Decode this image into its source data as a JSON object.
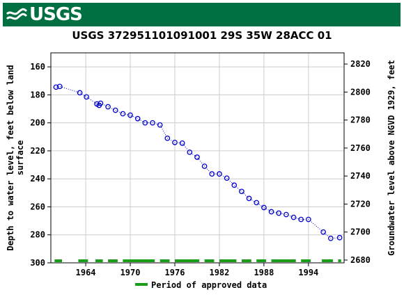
{
  "header": {
    "logo_text": "USGS",
    "brand_color": "#006f41",
    "logo_icon": "usgs-wave-icon"
  },
  "chart_data": {
    "type": "scatter",
    "title": "USGS 372951101091001 29S 35W 28ACC 01",
    "ylabel_left": "Depth to water level, feet below land surface",
    "ylabel_right": "Groundwater level above NGVD 1929, feet",
    "ylim_left": [
      300,
      150
    ],
    "ylim_right": [
      2678,
      2828
    ],
    "xlim": [
      1959.3,
      1998.8
    ],
    "x_ticks": [
      "1964",
      "1970",
      "1976",
      "1982",
      "1988",
      "1994"
    ],
    "y_ticks_left": [
      "160",
      "180",
      "200",
      "220",
      "240",
      "260",
      "280",
      "300"
    ],
    "y_ticks_right": [
      "2820",
      "2800",
      "2780",
      "2760",
      "2740",
      "2720",
      "2700",
      "2680"
    ],
    "grid": true,
    "series": [
      {
        "name": "",
        "marker": "circle-open",
        "color": "#0000cc",
        "line": "dotted",
        "points": [
          [
            1960.0,
            174.5
          ],
          [
            1960.5,
            174.0
          ],
          [
            1963.2,
            178.5
          ],
          [
            1964.1,
            181.5
          ],
          [
            1965.5,
            186.5
          ],
          [
            1965.8,
            187.5
          ],
          [
            1966.0,
            186.0
          ],
          [
            1967.0,
            188.5
          ],
          [
            1968.0,
            191.0
          ],
          [
            1969.0,
            193.5
          ],
          [
            1970.0,
            194.5
          ],
          [
            1971.0,
            197.0
          ],
          [
            1972.0,
            200.0
          ],
          [
            1973.0,
            200.0
          ],
          [
            1974.0,
            201.5
          ],
          [
            1975.0,
            211.0
          ],
          [
            1976.0,
            214.0
          ],
          [
            1977.0,
            214.5
          ],
          [
            1978.0,
            221.0
          ],
          [
            1979.0,
            224.5
          ],
          [
            1980.0,
            231.0
          ],
          [
            1981.0,
            236.5
          ],
          [
            1982.0,
            236.5
          ],
          [
            1983.0,
            239.5
          ],
          [
            1984.0,
            244.5
          ],
          [
            1985.0,
            249.0
          ],
          [
            1986.0,
            254.0
          ],
          [
            1987.0,
            257.0
          ],
          [
            1988.0,
            260.5
          ],
          [
            1989.0,
            263.5
          ],
          [
            1990.0,
            264.5
          ],
          [
            1991.0,
            265.5
          ],
          [
            1992.0,
            267.5
          ],
          [
            1993.0,
            269.0
          ],
          [
            1994.0,
            269.0
          ],
          [
            1996.0,
            278.0
          ],
          [
            1997.0,
            282.5
          ],
          [
            1998.2,
            282.0
          ]
        ]
      }
    ],
    "approved_periods": [
      [
        1959.8,
        1960.8
      ],
      [
        1963.0,
        1964.3
      ],
      [
        1965.3,
        1966.3
      ],
      [
        1967.0,
        1968.3
      ],
      [
        1969.0,
        1973.3
      ],
      [
        1974.0,
        1975.3
      ],
      [
        1976.0,
        1979.3
      ],
      [
        1980.0,
        1981.3
      ],
      [
        1982.0,
        1984.3
      ],
      [
        1985.0,
        1986.3
      ],
      [
        1987.0,
        1988.3
      ],
      [
        1989.0,
        1992.3
      ],
      [
        1993.0,
        1994.3
      ],
      [
        1995.8,
        1997.3
      ],
      [
        1998.0,
        1998.4
      ]
    ],
    "approved_color": "#1a9e1a",
    "legend": {
      "label": "Period of approved data",
      "placement": "bottom"
    }
  }
}
